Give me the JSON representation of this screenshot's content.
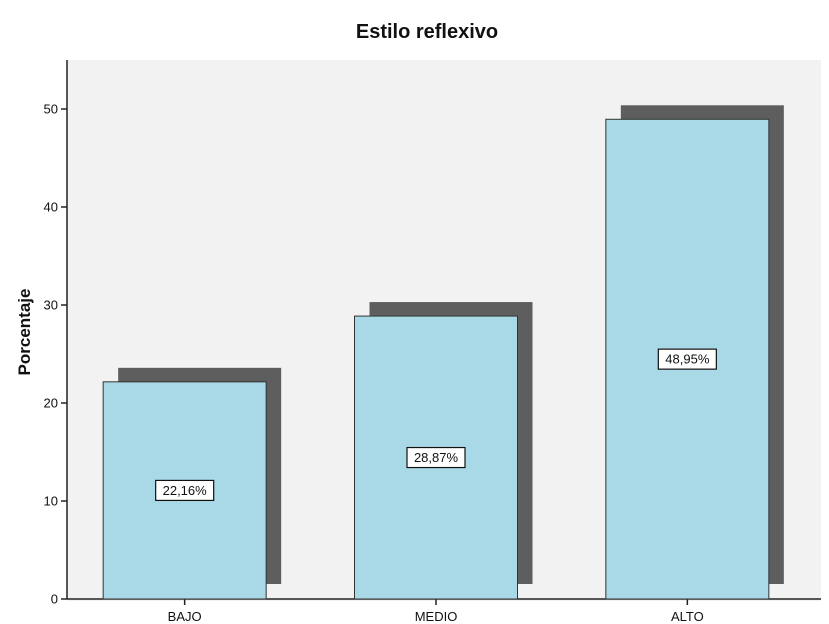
{
  "chart_data": {
    "type": "bar",
    "title": "Estilo reflexivo",
    "xlabel": "",
    "ylabel": "Porcentaje",
    "categories": [
      "BAJO",
      "MEDIO",
      "ALTO"
    ],
    "values": [
      22.16,
      28.87,
      48.95
    ],
    "data_labels": [
      "22,16%",
      "28,87%",
      "48,95%"
    ],
    "ylim": [
      0,
      55
    ],
    "yticks": [
      0,
      10,
      20,
      30,
      40,
      50
    ],
    "grid": false,
    "legend": "none",
    "colors": {
      "bar_fill": "#a9d9e6",
      "bar_shadow": "#5e5e5e",
      "plot_background": "#f3f2f3",
      "axis": "#222222"
    }
  }
}
